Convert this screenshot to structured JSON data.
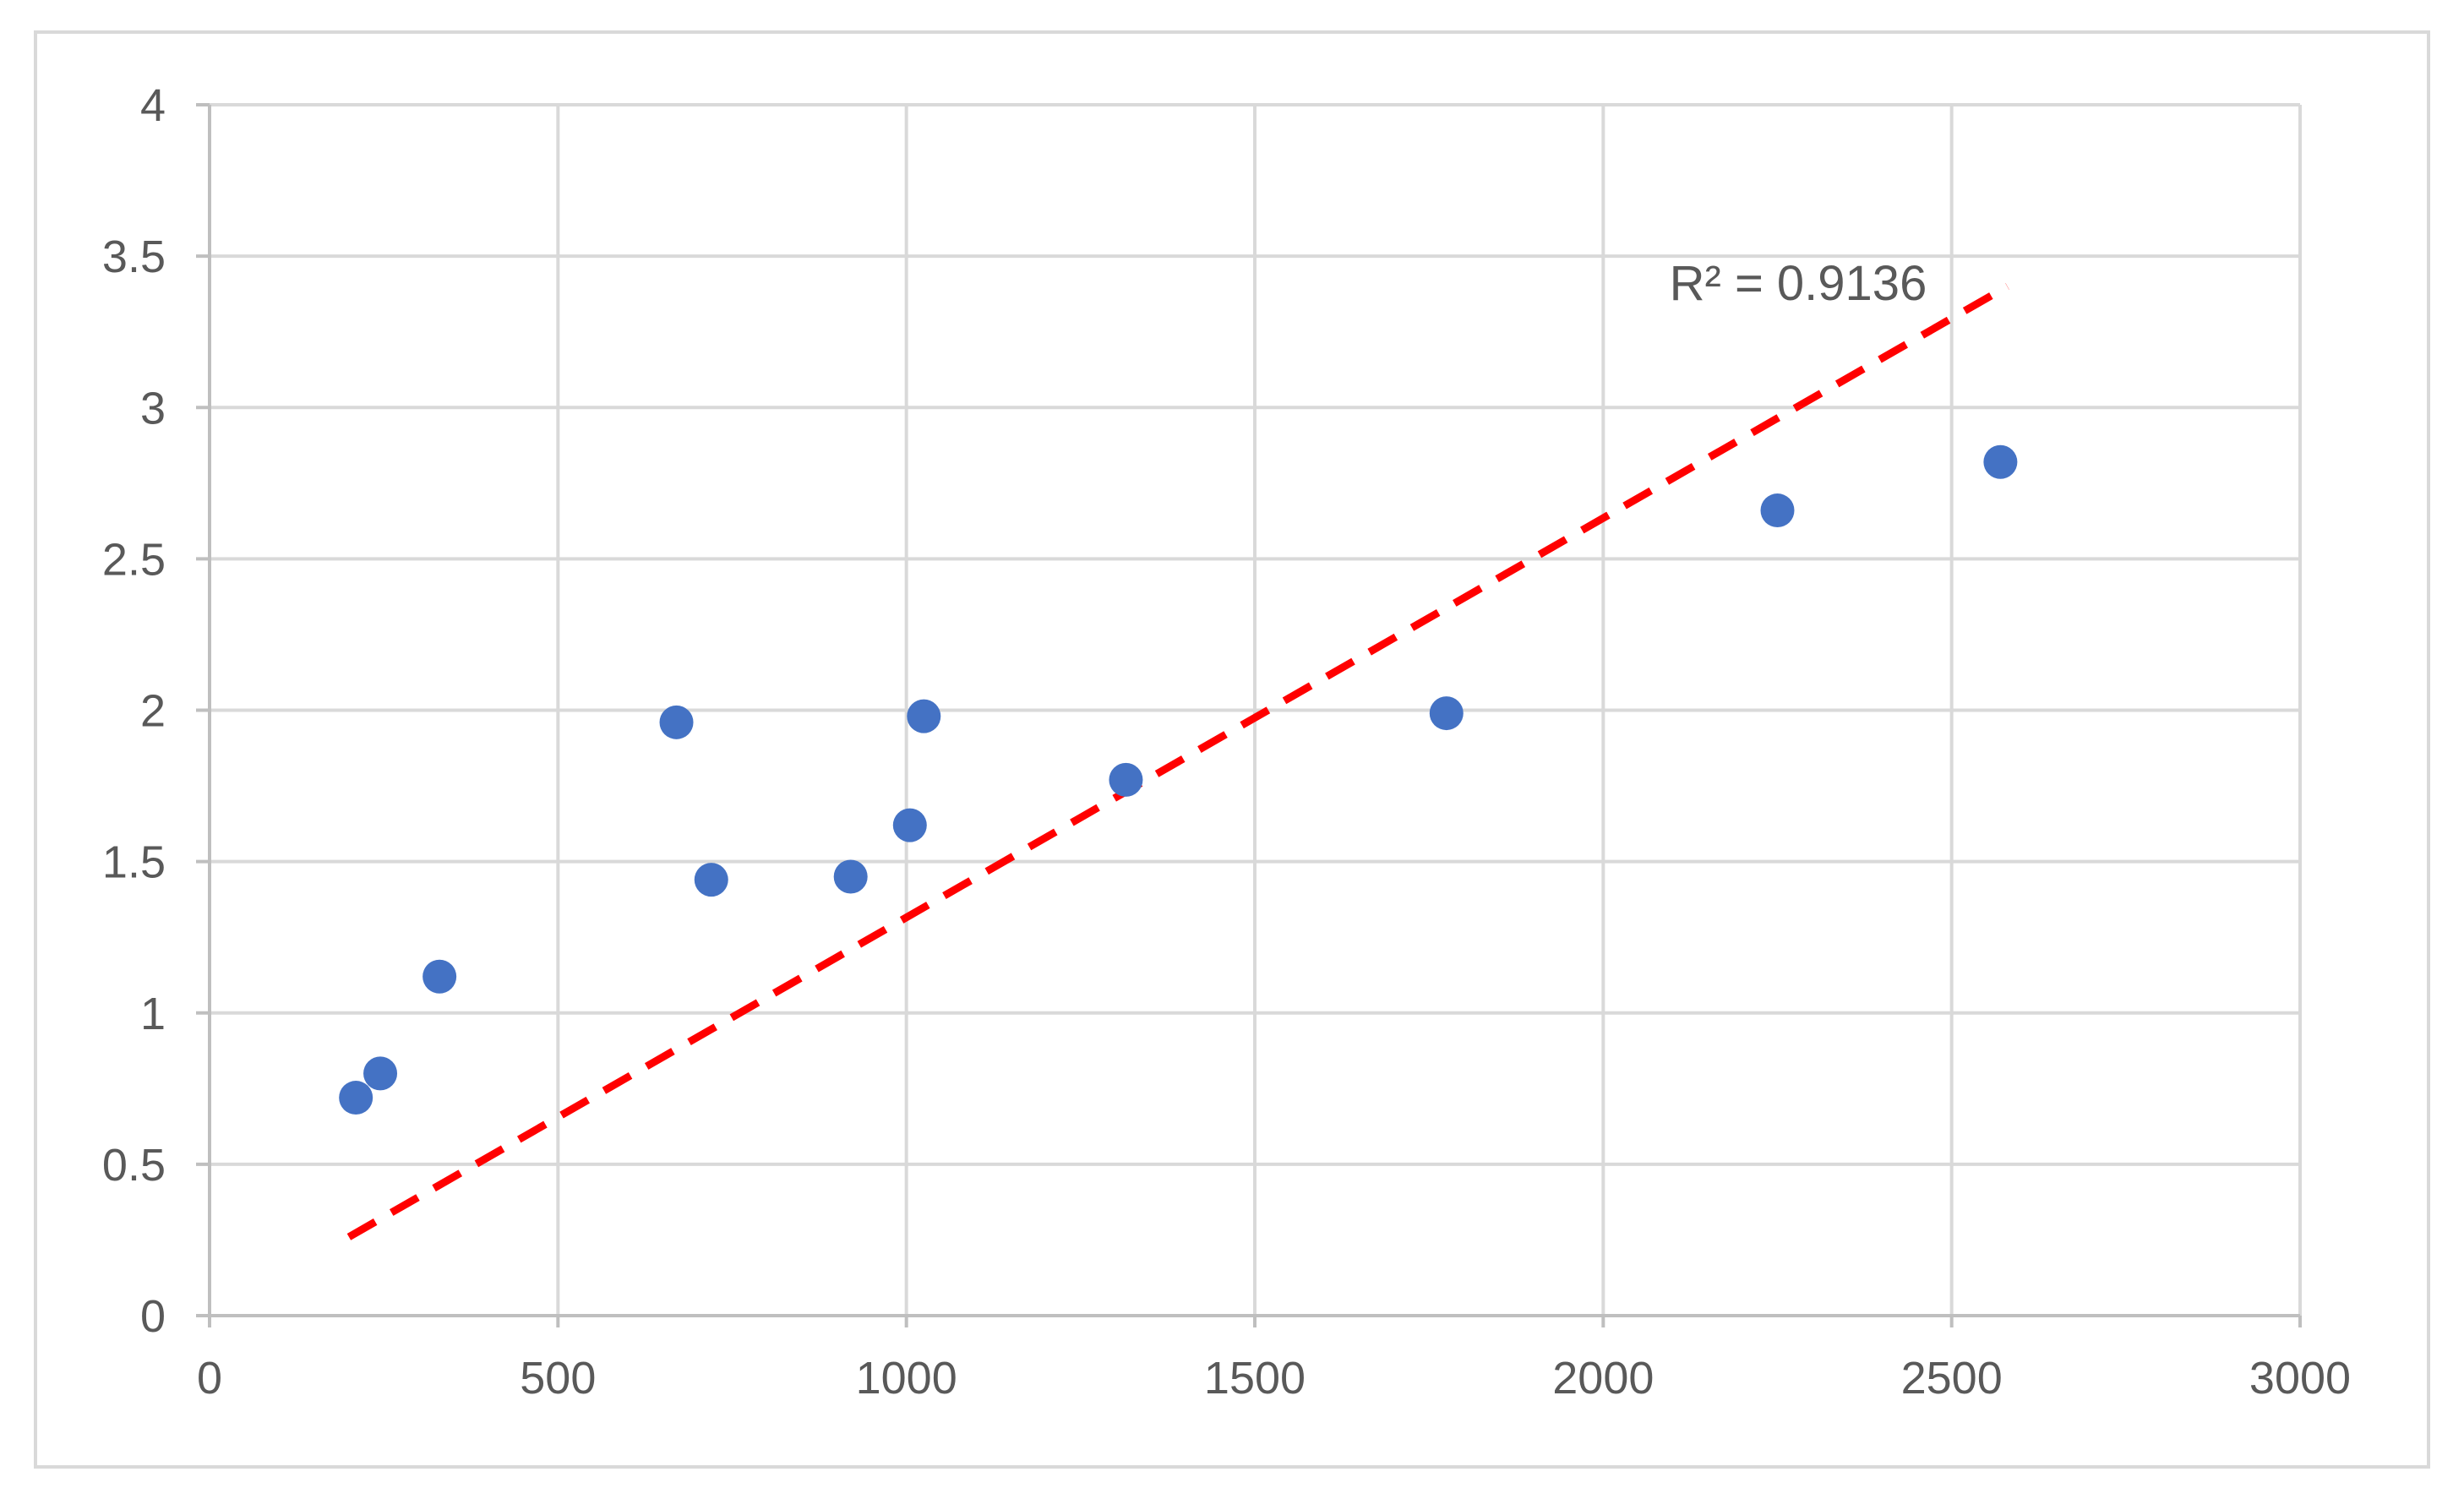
{
  "chart_data": {
    "type": "scatter",
    "title": "",
    "xlabel": "",
    "ylabel": "",
    "xlim": [
      0,
      3000
    ],
    "ylim": [
      0,
      4
    ],
    "x_ticks": [
      "0",
      "500",
      "1000",
      "1500",
      "2000",
      "2500",
      "3000"
    ],
    "y_ticks": [
      "0",
      "0.5",
      "1",
      "1.5",
      "2",
      "2.5",
      "3",
      "3.5",
      "4"
    ],
    "grid": true,
    "legend": "none",
    "series": [
      {
        "points": [
          {
            "x": 210,
            "y": 0.72
          },
          {
            "x": 245,
            "y": 0.8
          },
          {
            "x": 330,
            "y": 1.12
          },
          {
            "x": 670,
            "y": 1.96
          },
          {
            "x": 720,
            "y": 1.44
          },
          {
            "x": 920,
            "y": 1.45
          },
          {
            "x": 1005,
            "y": 1.62
          },
          {
            "x": 1025,
            "y": 1.98
          },
          {
            "x": 1315,
            "y": 1.77
          },
          {
            "x": 1775,
            "y": 1.99
          },
          {
            "x": 2250,
            "y": 2.66
          },
          {
            "x": 2570,
            "y": 2.82
          }
        ],
        "color": "#4472c4"
      }
    ],
    "trendline": {
      "type": "linear",
      "x_start": 200,
      "y_start": 0.26,
      "x_end": 2580,
      "y_end": 3.4,
      "color": "#ff0000",
      "style": "dashed"
    },
    "annotation": "R² = 0.9136"
  }
}
